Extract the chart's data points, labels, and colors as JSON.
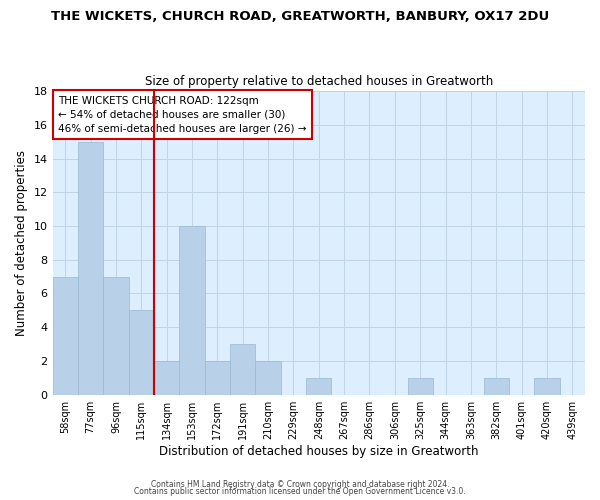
{
  "title": "THE WICKETS, CHURCH ROAD, GREATWORTH, BANBURY, OX17 2DU",
  "subtitle": "Size of property relative to detached houses in Greatworth",
  "xlabel": "Distribution of detached houses by size in Greatworth",
  "ylabel": "Number of detached properties",
  "bar_color": "#b8d0e8",
  "bar_edge_color": "#9ab8d0",
  "bin_labels": [
    "58sqm",
    "77sqm",
    "96sqm",
    "115sqm",
    "134sqm",
    "153sqm",
    "172sqm",
    "191sqm",
    "210sqm",
    "229sqm",
    "248sqm",
    "267sqm",
    "286sqm",
    "306sqm",
    "325sqm",
    "344sqm",
    "363sqm",
    "382sqm",
    "401sqm",
    "420sqm",
    "439sqm"
  ],
  "bar_heights": [
    7,
    15,
    7,
    5,
    2,
    10,
    2,
    3,
    2,
    0,
    1,
    0,
    0,
    0,
    1,
    0,
    0,
    1,
    0,
    1,
    0
  ],
  "vline_x": 3.5,
  "vline_color": "#cc0000",
  "annotation_line1": "THE WICKETS CHURCH ROAD: 122sqm",
  "annotation_line2": "← 54% of detached houses are smaller (30)",
  "annotation_line3": "46% of semi-detached houses are larger (26) →",
  "annotation_box_color": "#ffffff",
  "annotation_box_edge": "#cc0000",
  "ylim": [
    0,
    18
  ],
  "yticks": [
    0,
    2,
    4,
    6,
    8,
    10,
    12,
    14,
    16,
    18
  ],
  "footnote1": "Contains HM Land Registry data © Crown copyright and database right 2024.",
  "footnote2": "Contains public sector information licensed under the Open Government Licence v3.0.",
  "background_color": "#ffffff",
  "plot_bg_color": "#ddeeff",
  "grid_color": "#c0d4e8"
}
